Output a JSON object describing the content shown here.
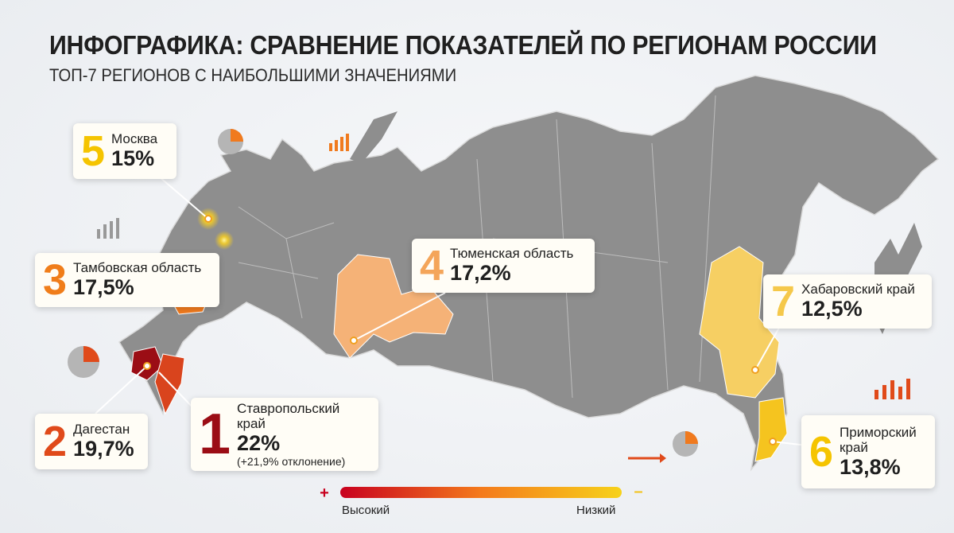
{
  "header": {
    "title": "ИНФОГРАФИКА: СРАВНЕНИЕ ПОКАЗАТЕЛЕЙ ПО РЕГИОНАМ РОССИИ",
    "subtitle": "ТОП-7 РЕГИОНОВ С НАИБОЛЬШИМИ ЗНАЧЕНИЯМИ"
  },
  "callouts": [
    {
      "rank": "5",
      "name": "Москва",
      "value": "15%"
    },
    {
      "rank": "3",
      "name": "Тамбовская область",
      "value": "17,5%"
    },
    {
      "rank": "2",
      "name": "Дагестан",
      "value": "19,7%"
    },
    {
      "rank": "1",
      "name": "Ставропольский край",
      "value": "22%",
      "note": "(+21,9% отклонение)"
    },
    {
      "rank": "4",
      "name": "Тюменская область",
      "value": "17,2%"
    },
    {
      "rank": "7",
      "name": "Хабаровский край",
      "value": "12,5%"
    },
    {
      "rank": "6",
      "name": "Приморский край",
      "value": "13,8%"
    }
  ],
  "legend": {
    "plus": "+",
    "minus": "–",
    "high": "Высокий",
    "low": "Низкий"
  }
}
